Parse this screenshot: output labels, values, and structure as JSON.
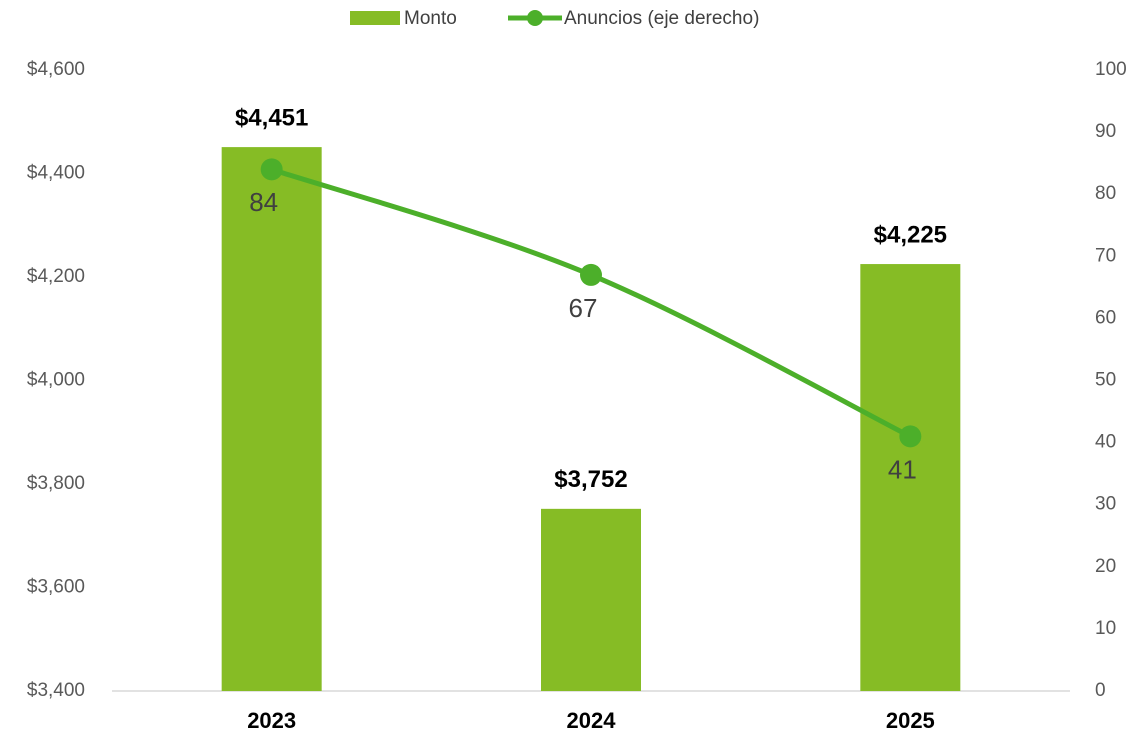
{
  "chart_data": {
    "type": "bar",
    "categories": [
      "2023",
      "2024",
      "2025"
    ],
    "series": [
      {
        "name": "Monto",
        "type": "bar",
        "color": "#86bc25",
        "values": [
          4451,
          3752,
          4225
        ],
        "value_labels": [
          "$4,451",
          "$3,752",
          "$4,225"
        ]
      },
      {
        "name": "Anuncios (eje derecho)",
        "type": "line",
        "axis": "y2",
        "color": "#4caf2a",
        "values": [
          84,
          67,
          41
        ]
      }
    ],
    "ylim": [
      3400,
      4600
    ],
    "yticks": [
      {
        "value": 3400,
        "label": "$3,400"
      },
      {
        "value": 3600,
        "label": "$3,600"
      },
      {
        "value": 3800,
        "label": "$3,800"
      },
      {
        "value": 4000,
        "label": "$4,000"
      },
      {
        "value": 4200,
        "label": "$4,200"
      },
      {
        "value": 4400,
        "label": "$4,400"
      },
      {
        "value": 4600,
        "label": "$4,600"
      }
    ],
    "y2lim": [
      0,
      100
    ],
    "y2ticks": [
      0,
      10,
      20,
      30,
      40,
      50,
      60,
      70,
      80,
      90,
      100
    ],
    "grid": false,
    "legend": "top"
  }
}
